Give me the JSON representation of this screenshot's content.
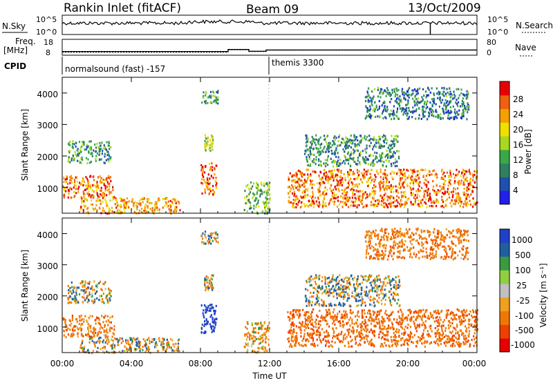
{
  "header": {
    "station": "Rankin Inlet (fitACF)",
    "beam": "Beam 09",
    "date": "13/Oct/2009"
  },
  "colors": {
    "power_scale": [
      "#2020e8",
      "#1f4fb0",
      "#2f8060",
      "#39a848",
      "#a8d820",
      "#f0e000",
      "#f4a000",
      "#f06010",
      "#e80000"
    ],
    "velocity_scale": [
      "#e80000",
      "#f04000",
      "#f07800",
      "#f0a020",
      "#c0c0c0",
      "#90d040",
      "#3a9a40",
      "#1f5fa0",
      "#2040c8"
    ]
  },
  "panels": {
    "nsky": {
      "left_label": "N.Sky",
      "right_label": "N.Search",
      "left_ticks": [
        "10^5",
        "10^0"
      ],
      "right_ticks": [
        "10^5",
        "10^0"
      ]
    },
    "freq": {
      "left_label_1": "Freq.",
      "left_label_2": "[MHz]",
      "right_label": "Nave",
      "left_ticks": [
        "18",
        "8"
      ],
      "right_ticks": [
        "80",
        "0"
      ],
      "freq_profile": [
        [
          0,
          10.3
        ],
        [
          9.6,
          10.3
        ],
        [
          9.6,
          11.6
        ],
        [
          10.8,
          11.6
        ],
        [
          10.8,
          10.5
        ],
        [
          11.8,
          10.5
        ],
        [
          11.8,
          11.3
        ],
        [
          24,
          11.3
        ]
      ],
      "nave_profile": [
        [
          0,
          15
        ],
        [
          9.6,
          15
        ],
        [
          9.6,
          27
        ],
        [
          10.8,
          27
        ],
        [
          10.8,
          18
        ],
        [
          11.8,
          18
        ],
        [
          11.8,
          25
        ],
        [
          24,
          25
        ]
      ]
    },
    "cpid": {
      "label": "CPID",
      "segments": [
        {
          "start_hour": 0,
          "text": "normalsound (fast) -157"
        },
        {
          "start_hour": 11.95,
          "text": "themis 3300"
        }
      ]
    },
    "power": {
      "ylabel": "Slant Range [km]",
      "yticks": [
        "1000",
        "2000",
        "3000",
        "4000"
      ],
      "colorbar_label": "Power [dB]",
      "colorbar_ticks": [
        "4",
        "8",
        "12",
        "16",
        "20",
        "24",
        "28"
      ]
    },
    "velocity": {
      "ylabel": "Slant Range [km]",
      "yticks": [
        "1000",
        "2000",
        "3000",
        "4000"
      ],
      "colorbar_label": "Velocity [m s⁻¹]",
      "colorbar_ticks": [
        "-1000",
        "-500",
        "-100",
        "-25",
        "25",
        "100",
        "500",
        "1000"
      ]
    },
    "time_axis": {
      "xlabel": "Time UT",
      "ticks": [
        "00:00",
        "04:00",
        "08:00",
        "12:00",
        "16:00",
        "20:00",
        "00:00"
      ]
    }
  },
  "chart_data": {
    "type": "heatmap",
    "title": "Rankin Inlet (fitACF) Beam 09 13/Oct/2009",
    "xlabel": "Time UT",
    "ylabel": "Slant Range [km]",
    "xlim": [
      0,
      24
    ],
    "ylim": [
      180,
      4500
    ],
    "power_range_db": [
      0,
      30
    ],
    "velocity_range_ms": [
      -1000,
      1000
    ],
    "echo_regions": [
      {
        "t0": 0.0,
        "t1": 3.0,
        "r0": 700,
        "r1": 1400,
        "power": 24,
        "velocity": -300
      },
      {
        "t0": 1.0,
        "t1": 6.8,
        "r0": 200,
        "r1": 700,
        "power": 22,
        "velocity": -40
      },
      {
        "t0": 0.3,
        "t1": 2.8,
        "r0": 1800,
        "r1": 2500,
        "power": 10,
        "velocity": 5
      },
      {
        "t0": 8.0,
        "t1": 8.9,
        "r0": 800,
        "r1": 1800,
        "power": 25,
        "velocity": 700
      },
      {
        "t0": 8.2,
        "t1": 8.7,
        "r0": 2200,
        "r1": 2700,
        "power": 16,
        "velocity": -10
      },
      {
        "t0": 8.0,
        "t1": 9.0,
        "r0": 3700,
        "r1": 4100,
        "power": 10,
        "velocity": 50
      },
      {
        "t0": 10.5,
        "t1": 12.0,
        "r0": 200,
        "r1": 1200,
        "power": 12,
        "velocity": -200
      },
      {
        "t0": 13.0,
        "t1": 24.0,
        "r0": 400,
        "r1": 1600,
        "power": 24,
        "velocity": -400
      },
      {
        "t0": 14.0,
        "t1": 19.5,
        "r0": 1700,
        "r1": 2700,
        "power": 10,
        "velocity": 10
      },
      {
        "t0": 17.5,
        "t1": 23.5,
        "r0": 3200,
        "r1": 4200,
        "power": 8,
        "velocity": -300
      }
    ]
  }
}
